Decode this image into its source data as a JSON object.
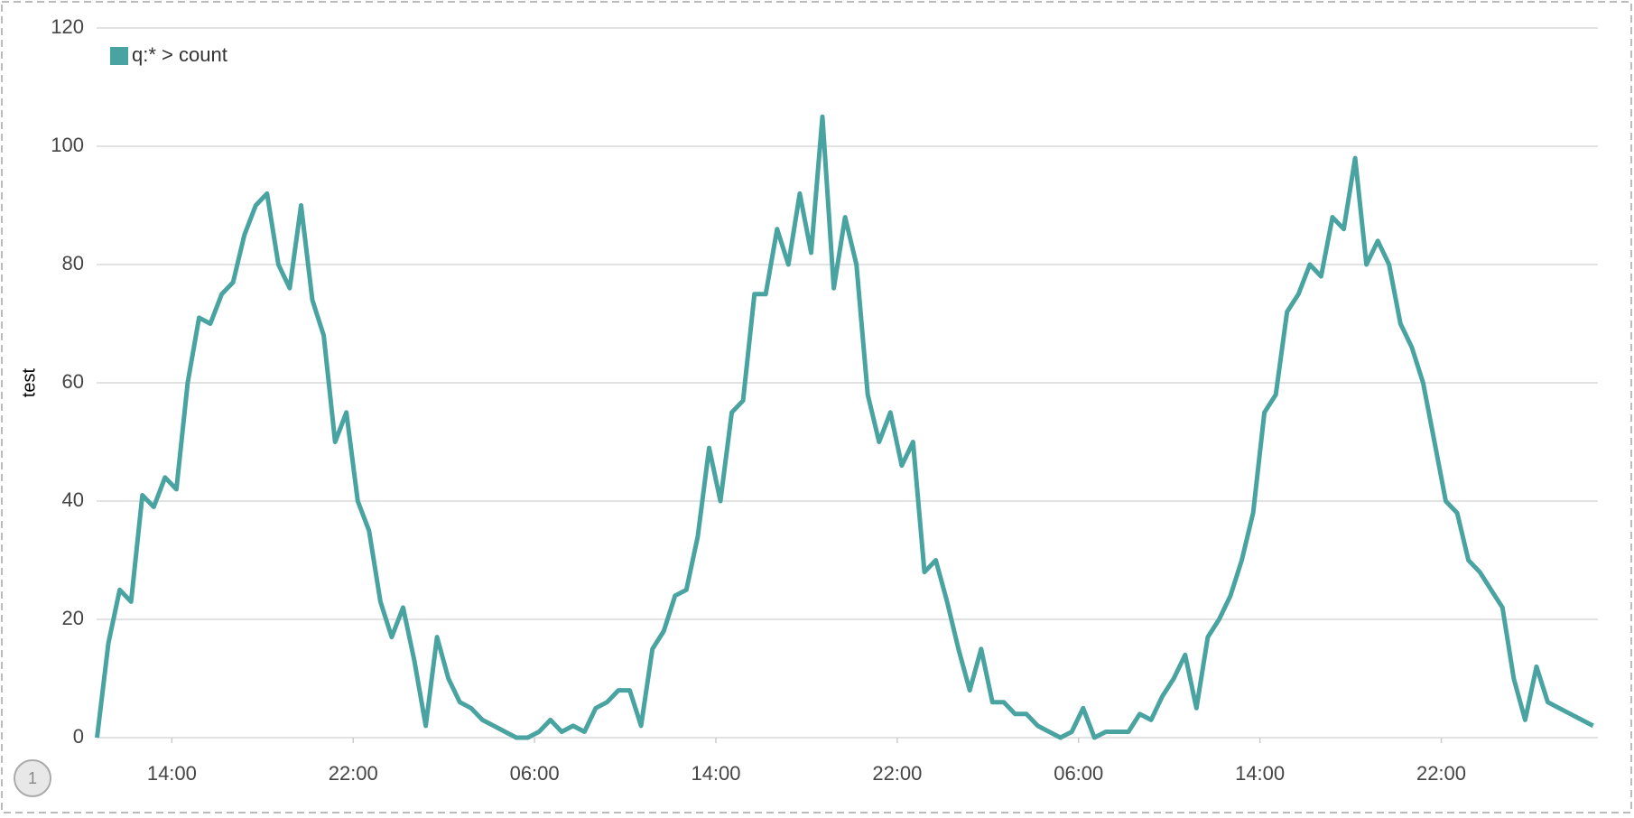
{
  "page_badge": "1",
  "chart_data": {
    "type": "line",
    "ylabel": "test",
    "x": [
      10.7,
      11.2,
      11.7,
      12.2,
      12.7,
      13.2,
      13.7,
      14.2,
      14.7,
      15.2,
      15.7,
      16.2,
      16.7,
      17.2,
      17.7,
      18.2,
      18.7,
      19.2,
      19.7,
      20.2,
      20.7,
      21.2,
      21.7,
      22.2,
      22.7,
      23.2,
      23.7,
      24.2,
      24.7,
      25.2,
      25.7,
      26.2,
      26.7,
      27.2,
      27.7,
      28.2,
      28.7,
      29.2,
      29.7,
      30.2,
      30.7,
      31.2,
      31.7,
      32.2,
      32.7,
      33.2,
      33.7,
      34.2,
      34.7,
      35.2,
      35.7,
      36.2,
      36.7,
      37.2,
      37.7,
      38.2,
      38.7,
      39.2,
      39.7,
      40.2,
      40.7,
      41.2,
      41.7,
      42.2,
      42.7,
      43.2,
      43.7,
      44.2,
      44.7,
      45.2,
      45.7,
      46.2,
      46.7,
      47.2,
      47.7,
      48.2,
      48.7,
      49.2,
      49.7,
      50.2,
      50.7,
      51.2,
      51.7,
      52.2,
      52.7,
      53.2,
      53.7,
      54.2,
      54.7,
      55.2,
      55.7,
      56.2,
      56.7,
      57.2,
      57.7,
      58.2,
      58.7,
      59.2,
      59.7,
      60.2,
      60.7,
      61.2,
      61.7,
      62.2,
      62.7,
      63.2,
      63.7,
      64.2,
      64.7,
      65.2,
      65.7,
      66.2,
      66.7,
      67.2,
      67.7,
      68.2,
      68.7,
      69.2,
      69.7,
      70.2,
      70.7,
      71.2,
      71.7,
      72.2,
      72.7,
      73.2,
      73.7,
      74.2,
      74.7,
      75.2,
      75.7,
      76.2,
      76.7
    ],
    "series": [
      {
        "name": "q:* > count",
        "color": "#48a3a1",
        "values": [
          0,
          16,
          25,
          23,
          41,
          39,
          44,
          42,
          60,
          71,
          70,
          75,
          77,
          85,
          90,
          92,
          80,
          76,
          90,
          74,
          68,
          50,
          55,
          40,
          35,
          23,
          17,
          22,
          13,
          2,
          17,
          10,
          6,
          5,
          3,
          2,
          1,
          0,
          0,
          1,
          3,
          1,
          2,
          1,
          5,
          6,
          8,
          8,
          2,
          15,
          18,
          24,
          25,
          34,
          49,
          40,
          55,
          57,
          75,
          75,
          86,
          80,
          92,
          82,
          105,
          76,
          88,
          80,
          58,
          50,
          55,
          46,
          50,
          28,
          30,
          23,
          15,
          8,
          15,
          6,
          6,
          4,
          4,
          2,
          1,
          0,
          1,
          5,
          0,
          1,
          1,
          1,
          4,
          3,
          7,
          10,
          14,
          5,
          17,
          20,
          24,
          30,
          38,
          55,
          58,
          72,
          75,
          80,
          78,
          88,
          86,
          98,
          80,
          84,
          80,
          70,
          66,
          60,
          50,
          40,
          38,
          30,
          28,
          25,
          22,
          10,
          3,
          12,
          6,
          5,
          4,
          3,
          2
        ]
      }
    ],
    "xlim": [
      10.68,
      76.91
    ],
    "xticks": [
      {
        "value": 14,
        "label": "14:00"
      },
      {
        "value": 22,
        "label": "22:00"
      },
      {
        "value": 30,
        "label": "06:00"
      },
      {
        "value": 38,
        "label": "14:00"
      },
      {
        "value": 46,
        "label": "22:00"
      },
      {
        "value": 54,
        "label": "06:00"
      },
      {
        "value": 62,
        "label": "14:00"
      },
      {
        "value": 70,
        "label": "22:00"
      }
    ],
    "ylim": [
      0,
      120
    ],
    "yticks": [
      0,
      20,
      40,
      60,
      80,
      100,
      120
    ],
    "grid": true
  }
}
